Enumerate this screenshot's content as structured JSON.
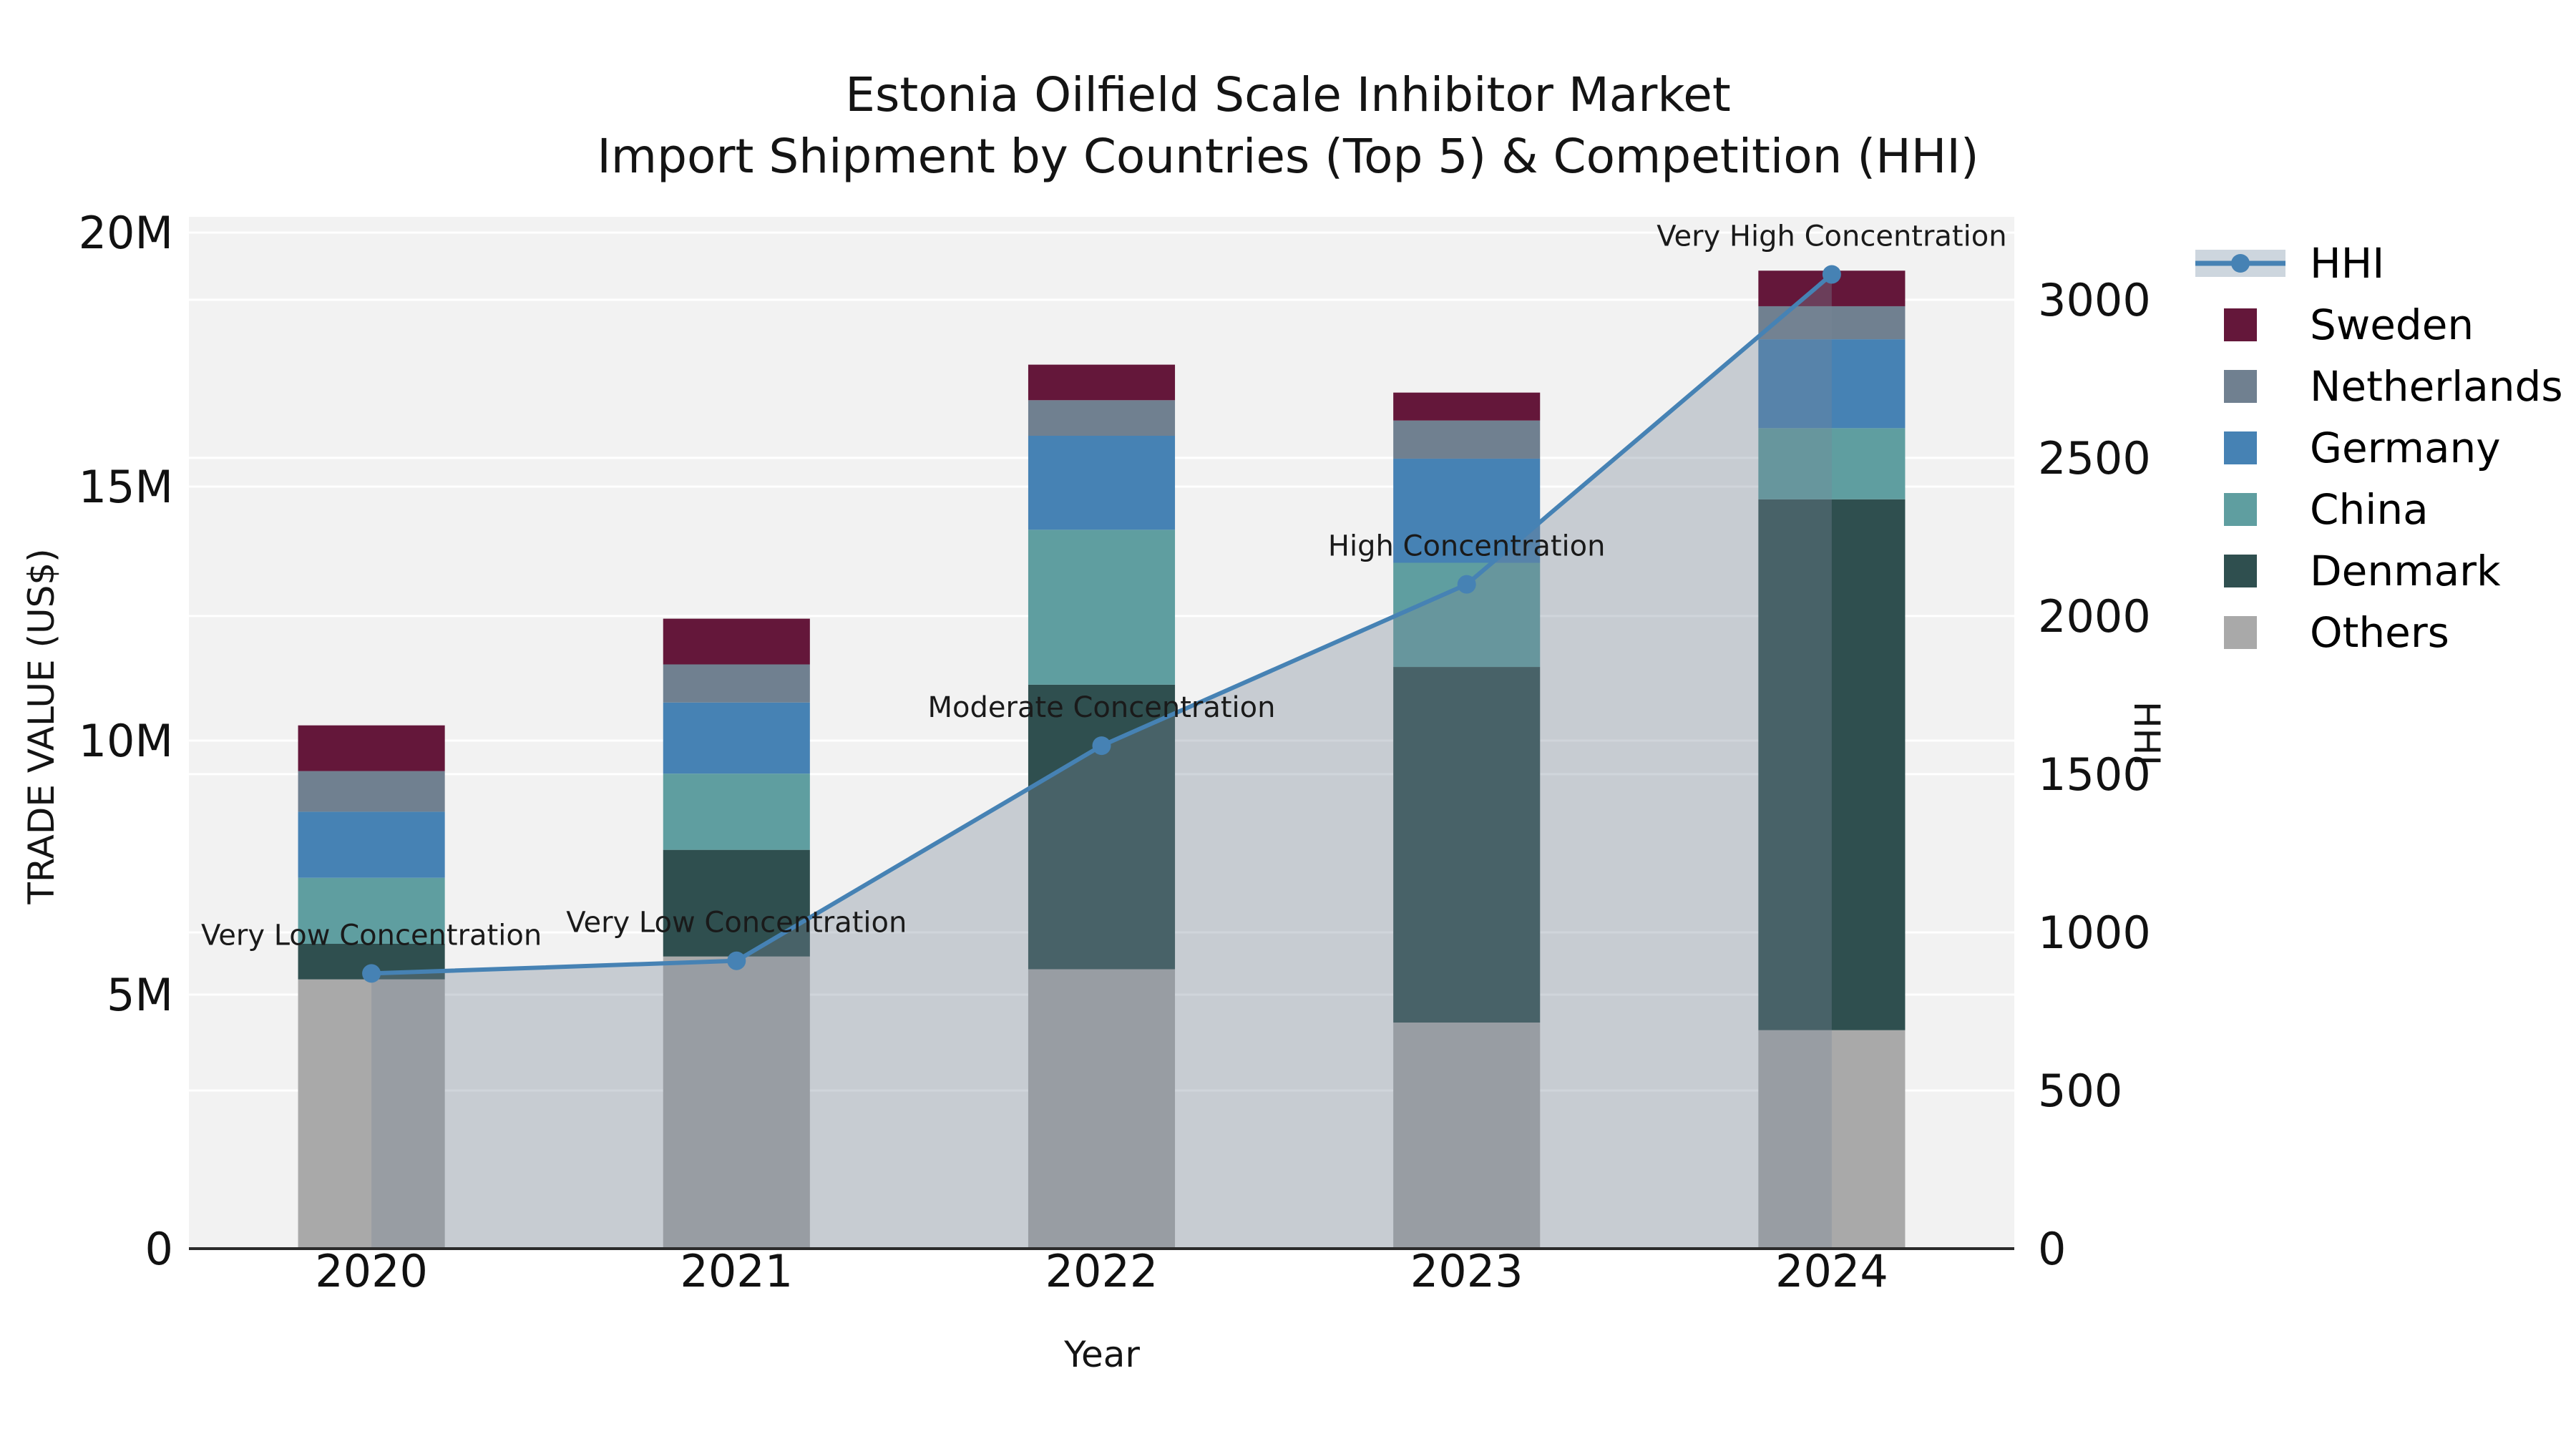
{
  "title": {
    "line1": "Estonia Oilfield Scale Inhibitor Market",
    "line2": "Import Shipment by Countries (Top 5) & Competition (HHI)"
  },
  "chart_data": {
    "type": "combo-stacked-bar-line",
    "categories": [
      "2020",
      "2021",
      "2022",
      "2023",
      "2024"
    ],
    "unit": "million US$",
    "bar_series": [
      {
        "name": "Others",
        "color": "#a9a9a9",
        "values": [
          5.3,
          5.75,
          5.5,
          4.45,
          4.3
        ]
      },
      {
        "name": "Denmark",
        "color": "#2f4f4f",
        "values": [
          0.7,
          2.1,
          5.6,
          7.0,
          10.45
        ]
      },
      {
        "name": "China",
        "color": "#5f9ea0",
        "values": [
          1.3,
          1.5,
          3.05,
          2.05,
          1.4
        ]
      },
      {
        "name": "Germany",
        "color": "#4682b4",
        "values": [
          1.3,
          1.4,
          1.85,
          2.05,
          1.75
        ]
      },
      {
        "name": "Netherlands",
        "color": "#708090",
        "values": [
          0.8,
          0.75,
          0.7,
          0.75,
          0.65
        ]
      },
      {
        "name": "Sweden",
        "color": "#64173a",
        "values": [
          0.9,
          0.9,
          0.7,
          0.55,
          0.7
        ]
      }
    ],
    "bar_totals": [
      10.3,
      12.4,
      17.4,
      16.85,
      19.25
    ],
    "line_series": {
      "name": "HHI",
      "color": "#4682b4",
      "area_fill": "#778899",
      "area_opacity": 0.35,
      "values": [
        870,
        910,
        1590,
        2100,
        3080
      ]
    },
    "annotations": [
      "Very Low Concentration",
      "Very Low Concentration",
      "Moderate Concentration",
      "High Concentration",
      "Very High Concentration"
    ],
    "x_label": "Year",
    "y_left": {
      "label": "TRADE VALUE (US$)",
      "tick_values": [
        0,
        5,
        10,
        15,
        20
      ],
      "tick_labels": [
        "0",
        "5M",
        "10M",
        "15M",
        "20M"
      ],
      "ylim": [
        0,
        20.31
      ]
    },
    "y_right": {
      "label": "HHI",
      "tick_values": [
        0,
        500,
        1000,
        1500,
        2000,
        2500,
        3000
      ],
      "tick_labels": [
        "0",
        "500",
        "1000",
        "1500",
        "2000",
        "2500",
        "3000"
      ],
      "ylim": [
        0,
        3262
      ]
    },
    "grid": "on",
    "plot_bg": "#f2f2f2",
    "grid_color": "#ffffff",
    "axis_line_color": "#2b2b2b",
    "legend_position": "right"
  },
  "legend": {
    "items": [
      {
        "id": "hhi",
        "label": "HHI",
        "type": "line",
        "color": "#4682b4",
        "band": "#cdd6de"
      },
      {
        "id": "sweden",
        "label": "Sweden",
        "type": "patch",
        "color": "#64173a"
      },
      {
        "id": "netherlands",
        "label": "Netherlands",
        "type": "patch",
        "color": "#708090"
      },
      {
        "id": "germany",
        "label": "Germany",
        "type": "patch",
        "color": "#4682b4"
      },
      {
        "id": "china",
        "label": "China",
        "type": "patch",
        "color": "#5f9ea0"
      },
      {
        "id": "denmark",
        "label": "Denmark",
        "type": "patch",
        "color": "#2f4f4f"
      },
      {
        "id": "others",
        "label": "Others",
        "type": "patch",
        "color": "#a9a9a9"
      }
    ]
  }
}
